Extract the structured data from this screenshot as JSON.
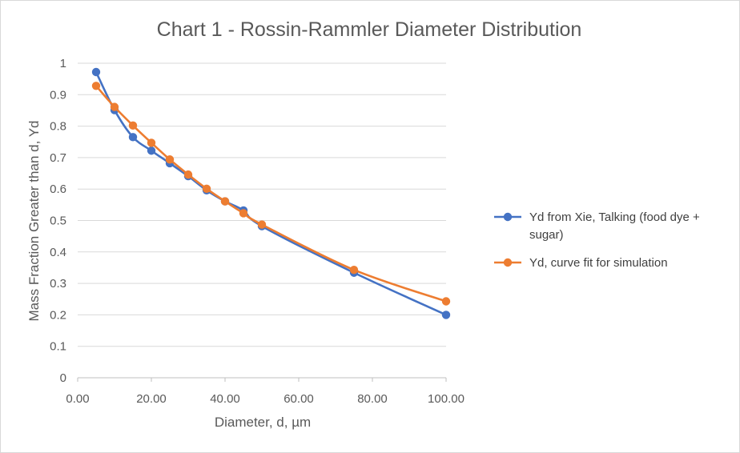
{
  "chart_data": {
    "type": "line",
    "title": "Chart 1 - Rossin-Rammler Diameter Distribution",
    "xlabel": "Diameter, d, µm",
    "ylabel": "Mass Fraction Greater than d, Yd",
    "xlim": [
      0,
      100
    ],
    "ylim": [
      0,
      1
    ],
    "x_ticks": [
      "0.00",
      "20.00",
      "40.00",
      "60.00",
      "80.00",
      "100.00"
    ],
    "x_tick_values": [
      0,
      20,
      40,
      60,
      80,
      100
    ],
    "y_ticks": [
      "0",
      "0.1",
      "0.2",
      "0.3",
      "0.4",
      "0.5",
      "0.6",
      "0.7",
      "0.8",
      "0.9",
      "1"
    ],
    "y_tick_values": [
      0,
      0.1,
      0.2,
      0.3,
      0.4,
      0.5,
      0.6,
      0.7,
      0.8,
      0.9,
      1
    ],
    "grid": "horizontal",
    "legend_position": "right",
    "series": [
      {
        "name": "Yd from Xie, Talking (food dye + sugar)",
        "legend_lines": [
          "Yd from Xie, Talking (food dye +",
          "sugar)"
        ],
        "color": "#4472C4",
        "x": [
          5,
          10,
          15,
          20,
          25,
          30,
          35,
          40,
          45,
          50,
          75,
          100
        ],
        "y": [
          0.972,
          0.851,
          0.765,
          0.722,
          0.682,
          0.641,
          0.596,
          0.561,
          0.532,
          0.482,
          0.334,
          0.2
        ]
      },
      {
        "name": "Yd, curve fit for simulation",
        "legend_lines": [
          "Yd, curve fit for simulation"
        ],
        "color": "#ED7D31",
        "x": [
          5,
          10,
          15,
          20,
          25,
          30,
          35,
          40,
          45,
          50,
          75,
          100
        ],
        "y": [
          0.928,
          0.861,
          0.802,
          0.747,
          0.694,
          0.646,
          0.601,
          0.561,
          0.523,
          0.487,
          0.343,
          0.243
        ]
      }
    ]
  }
}
